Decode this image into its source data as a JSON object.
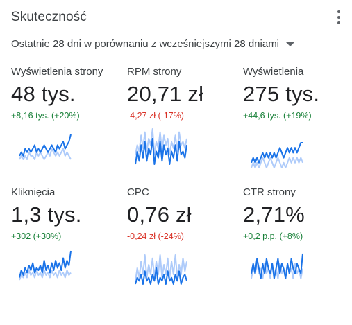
{
  "card": {
    "title": "Skuteczność",
    "period": "Ostatnie 28 dni w porównaniu z wcześniejszymi 28 dniami",
    "menu_icon": "more-vert-icon",
    "caret_icon": "arrow-drop-down-icon"
  },
  "colors": {
    "current": "#1a73e8",
    "previous": "#aecbfa",
    "positive": "#188038",
    "negative": "#d93025"
  },
  "metrics": [
    {
      "label": "Wyświetlenia strony",
      "value": "48 tys.",
      "change": "+8,16 tys. (+20%)",
      "trend": "up",
      "spark": {
        "current": [
          4,
          5,
          4,
          6,
          5,
          6,
          5,
          6,
          7,
          5,
          6,
          5,
          6,
          7,
          6,
          5,
          6,
          7,
          6,
          5,
          7,
          6,
          7,
          8,
          6,
          7,
          8,
          10
        ],
        "previous": [
          3,
          4,
          3,
          4,
          3,
          5,
          4,
          4,
          3,
          5,
          4,
          5,
          4,
          3,
          4,
          5,
          4,
          6,
          5,
          4,
          5,
          4,
          5,
          6,
          4,
          5,
          4,
          3
        ]
      }
    },
    {
      "label": "RPM strony",
      "value": "20,71 zł",
      "change": "-4,27 zł (-17%)",
      "trend": "down",
      "spark": {
        "current": [
          2,
          6,
          3,
          8,
          4,
          9,
          3,
          7,
          5,
          10,
          2,
          6,
          4,
          9,
          3,
          8,
          5,
          7,
          2,
          6,
          4,
          8,
          3,
          9,
          5,
          6,
          4,
          8
        ],
        "previous": [
          5,
          8,
          6,
          11,
          7,
          12,
          6,
          10,
          8,
          13,
          5,
          9,
          7,
          12,
          6,
          11,
          8,
          10,
          5,
          9,
          7,
          11,
          6,
          12,
          8,
          9,
          7,
          10
        ]
      }
    },
    {
      "label": "Wyświetlenia",
      "value": "275 tys.",
      "change": "+44,6 tys. (+19%)",
      "trend": "up",
      "spark": {
        "current": [
          4,
          5,
          4,
          5,
          4,
          5,
          6,
          5,
          6,
          5,
          6,
          5,
          6,
          5,
          6,
          7,
          6,
          5,
          6,
          7,
          6,
          7,
          6,
          7,
          6,
          7,
          8,
          8
        ],
        "previous": [
          3,
          4,
          3,
          4,
          3,
          4,
          5,
          4,
          3,
          4,
          5,
          4,
          3,
          4,
          5,
          4,
          3,
          4,
          3,
          4,
          5,
          4,
          5,
          4,
          5,
          4,
          5,
          4
        ]
      }
    },
    {
      "label": "Kliknięcia",
      "value": "1,3 tys.",
      "change": "+302 (+30%)",
      "trend": "up",
      "spark": {
        "current": [
          3,
          6,
          4,
          7,
          5,
          8,
          6,
          9,
          5,
          7,
          6,
          8,
          5,
          10,
          6,
          8,
          5,
          9,
          6,
          10,
          7,
          9,
          6,
          11,
          7,
          10,
          8,
          14
        ],
        "previous": [
          2,
          4,
          3,
          5,
          3,
          6,
          4,
          5,
          3,
          6,
          4,
          5,
          3,
          6,
          4,
          5,
          3,
          6,
          4,
          5,
          3,
          6,
          4,
          5,
          3,
          6,
          4,
          5
        ]
      }
    },
    {
      "label": "CPC",
      "value": "0,76 zł",
      "change": "-0,24 zł (-24%)",
      "trend": "down",
      "spark": {
        "current": [
          3,
          5,
          4,
          6,
          3,
          7,
          4,
          5,
          3,
          6,
          4,
          8,
          3,
          5,
          4,
          6,
          3,
          7,
          4,
          5,
          3,
          6,
          4,
          7,
          3,
          5,
          6,
          4
        ],
        "previous": [
          4,
          8,
          5,
          10,
          6,
          12,
          5,
          9,
          6,
          11,
          5,
          10,
          6,
          12,
          5,
          9,
          6,
          11,
          5,
          10,
          6,
          12,
          5,
          9,
          6,
          11,
          7,
          10
        ]
      }
    },
    {
      "label": "CTR strony",
      "value": "2,71%",
      "change": "+0,2 p.p. (+8%)",
      "trend": "up",
      "spark": {
        "current": [
          5,
          7,
          5,
          8,
          6,
          4,
          7,
          5,
          8,
          6,
          5,
          7,
          4,
          6,
          8,
          5,
          7,
          6,
          4,
          7,
          5,
          8,
          6,
          5,
          7,
          6,
          5,
          9
        ],
        "previous": [
          4,
          6,
          5,
          7,
          5,
          6,
          4,
          7,
          5,
          6,
          4,
          7,
          5,
          6,
          4,
          7,
          5,
          6,
          4,
          7,
          5,
          6,
          4,
          7,
          5,
          6,
          4,
          6
        ]
      }
    }
  ]
}
